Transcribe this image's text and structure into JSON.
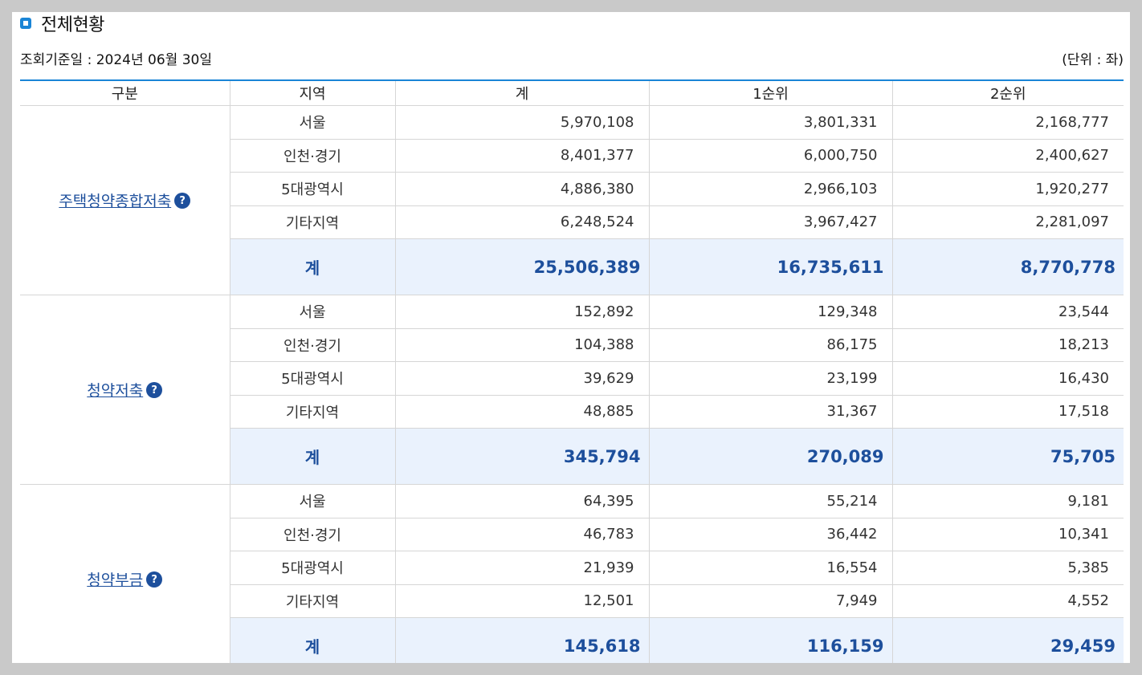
{
  "title": "전체현황",
  "base_date": "조회기준일 : 2024년 06월 30일",
  "unit": "(단위 : 좌)",
  "headers": [
    "구분",
    "지역",
    "계",
    "1순위",
    "2순위"
  ],
  "help_glyph": "?",
  "groups": [
    {
      "name": "주택청약종합저축",
      "rows": [
        {
          "region": "서울",
          "total": "5,970,108",
          "first": "3,801,331",
          "second": "2,168,777"
        },
        {
          "region": "인천·경기",
          "total": "8,401,377",
          "first": "6,000,750",
          "second": "2,400,627"
        },
        {
          "region": "5대광역시",
          "total": "4,886,380",
          "first": "2,966,103",
          "second": "1,920,277"
        },
        {
          "region": "기타지역",
          "total": "6,248,524",
          "first": "3,967,427",
          "second": "2,281,097"
        }
      ],
      "sum": {
        "region": "계",
        "total": "25,506,389",
        "first": "16,735,611",
        "second": "8,770,778"
      }
    },
    {
      "name": "청약저축",
      "rows": [
        {
          "region": "서울",
          "total": "152,892",
          "first": "129,348",
          "second": "23,544"
        },
        {
          "region": "인천·경기",
          "total": "104,388",
          "first": "86,175",
          "second": "18,213"
        },
        {
          "region": "5대광역시",
          "total": "39,629",
          "first": "23,199",
          "second": "16,430"
        },
        {
          "region": "기타지역",
          "total": "48,885",
          "first": "31,367",
          "second": "17,518"
        }
      ],
      "sum": {
        "region": "계",
        "total": "345,794",
        "first": "270,089",
        "second": "75,705"
      }
    },
    {
      "name": "청약부금",
      "rows": [
        {
          "region": "서울",
          "total": "64,395",
          "first": "55,214",
          "second": "9,181"
        },
        {
          "region": "인천·경기",
          "total": "46,783",
          "first": "36,442",
          "second": "10,341"
        },
        {
          "region": "5대광역시",
          "total": "21,939",
          "first": "16,554",
          "second": "5,385"
        },
        {
          "region": "기타지역",
          "total": "12,501",
          "first": "7,949",
          "second": "4,552"
        }
      ],
      "sum": {
        "region": "계",
        "total": "145,618",
        "first": "116,159",
        "second": "29,459"
      }
    }
  ]
}
